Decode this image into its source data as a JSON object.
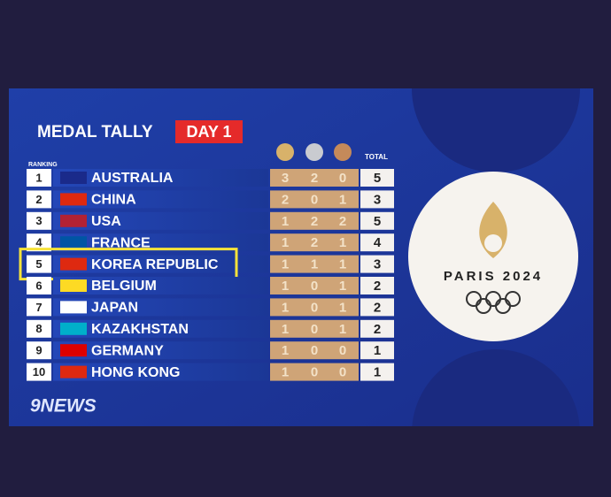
{
  "header": {
    "title": "MEDAL TALLY",
    "day": "DAY 1"
  },
  "table": {
    "ranking_label": "RANKING",
    "total_label": "TOTAL",
    "rows": [
      [
        1,
        "AUSTRALIA",
        3,
        2,
        0,
        5
      ],
      [
        2,
        "CHINA",
        2,
        0,
        1,
        3
      ],
      [
        3,
        "USA",
        1,
        2,
        2,
        5
      ],
      [
        4,
        "FRANCE",
        1,
        2,
        1,
        4
      ],
      [
        5,
        "KOREA REPUBLIC",
        1,
        1,
        1,
        3
      ],
      [
        6,
        "BELGIUM",
        1,
        0,
        1,
        2
      ],
      [
        7,
        "JAPAN",
        1,
        0,
        1,
        2
      ],
      [
        8,
        "KAZAKHSTAN",
        1,
        0,
        1,
        2
      ],
      [
        9,
        "GERMANY",
        1,
        0,
        0,
        1
      ],
      [
        10,
        "HONG KONG",
        1,
        0,
        0,
        1
      ]
    ]
  },
  "logo": {
    "text": "PARIS 2024"
  },
  "brand": "9NEWS"
}
